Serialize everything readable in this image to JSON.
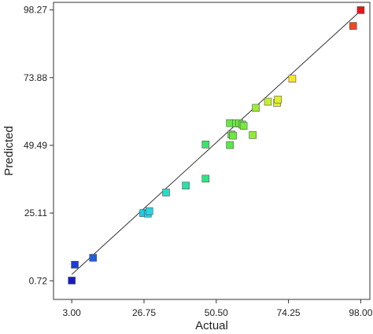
{
  "chart_data": {
    "type": "scatter",
    "title": "",
    "xlabel": "Actual",
    "ylabel": "Predicted",
    "xlim": [
      -3.0,
      101.0
    ],
    "ylim": [
      -6.0,
      101.0
    ],
    "xticks": [
      3.0,
      26.75,
      50.5,
      74.25,
      98.0
    ],
    "xtick_labels": [
      "3.00",
      "26.75",
      "50.50",
      "74.25",
      "98.00"
    ],
    "yticks": [
      0.72,
      25.11,
      49.49,
      73.88,
      98.27
    ],
    "ytick_labels": [
      "0.72",
      "25.11",
      "49.49",
      "73.88",
      "98.27"
    ],
    "grid": false,
    "reference_line": {
      "from": [
        3.0,
        3.0
      ],
      "to": [
        98.0,
        98.0
      ]
    },
    "points": [
      {
        "x": 3.0,
        "y": 0.8,
        "color": "#1a1ac8"
      },
      {
        "x": 4.0,
        "y": 6.5,
        "color": "#1e3cdc"
      },
      {
        "x": 10.0,
        "y": 9.0,
        "color": "#2060d8"
      },
      {
        "x": 26.5,
        "y": 25.1,
        "color": "#22c8e6"
      },
      {
        "x": 28.0,
        "y": 24.9,
        "color": "#26d0e4"
      },
      {
        "x": 28.5,
        "y": 25.8,
        "color": "#28d4e2"
      },
      {
        "x": 34.0,
        "y": 32.5,
        "color": "#26dcc8"
      },
      {
        "x": 40.5,
        "y": 35.0,
        "color": "#2ae0a8"
      },
      {
        "x": 47.0,
        "y": 37.5,
        "color": "#30e482"
      },
      {
        "x": 47.0,
        "y": 49.8,
        "color": "#38e46c"
      },
      {
        "x": 55.0,
        "y": 49.6,
        "color": "#58e84a"
      },
      {
        "x": 55.5,
        "y": 53.4,
        "color": "#62e844"
      },
      {
        "x": 55.0,
        "y": 57.5,
        "color": "#66e844"
      },
      {
        "x": 56.0,
        "y": 53.0,
        "color": "#6aea40"
      },
      {
        "x": 57.0,
        "y": 57.4,
        "color": "#6cea40"
      },
      {
        "x": 58.0,
        "y": 57.5,
        "color": "#70ea3e"
      },
      {
        "x": 59.0,
        "y": 57.0,
        "color": "#74ea3e"
      },
      {
        "x": 59.5,
        "y": 56.5,
        "color": "#78ea3c"
      },
      {
        "x": 62.5,
        "y": 53.2,
        "color": "#90ec36"
      },
      {
        "x": 63.5,
        "y": 63.0,
        "color": "#9cec34"
      },
      {
        "x": 67.5,
        "y": 65.2,
        "color": "#c4ee30"
      },
      {
        "x": 70.5,
        "y": 64.8,
        "color": "#dcee2c"
      },
      {
        "x": 70.8,
        "y": 66.0,
        "color": "#e0ee2c"
      },
      {
        "x": 75.5,
        "y": 73.5,
        "color": "#f6e628"
      },
      {
        "x": 95.5,
        "y": 92.5,
        "color": "#ec4a20"
      },
      {
        "x": 98.0,
        "y": 98.2,
        "color": "#e01818"
      }
    ]
  }
}
